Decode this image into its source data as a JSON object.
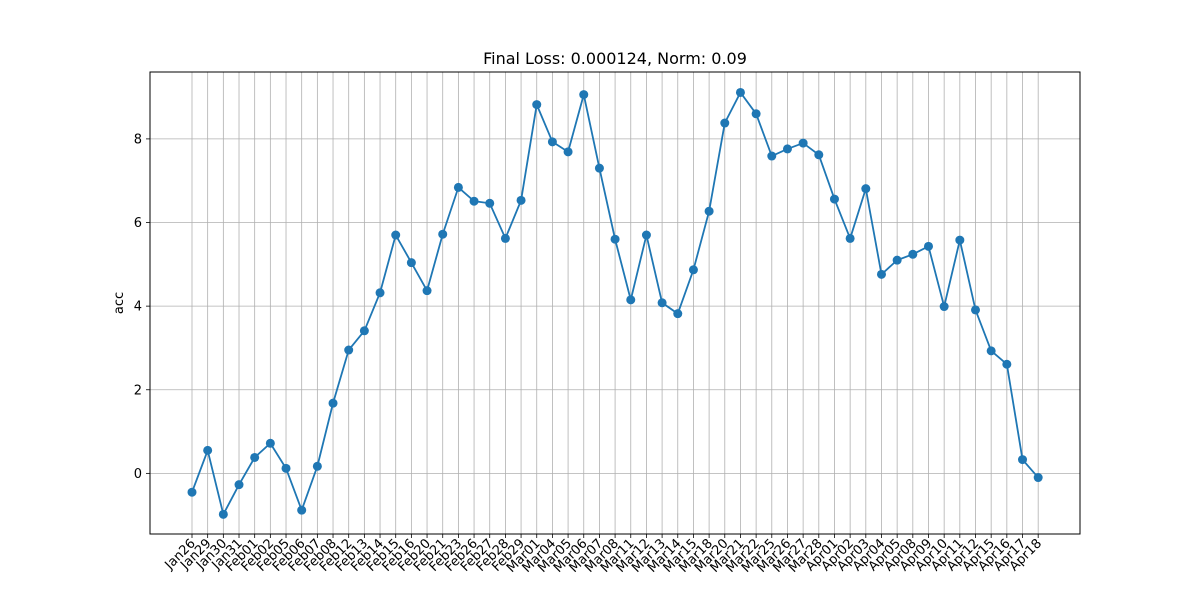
{
  "chart_data": {
    "type": "line",
    "title": "Final Loss: 0.000124, Norm: 0.09",
    "xlabel": "",
    "ylabel": "acc",
    "ylim": [
      -1.45,
      9.6
    ],
    "yticks": [
      0,
      2,
      4,
      6,
      8
    ],
    "grid": true,
    "colors": {
      "line": "#1f77b4",
      "grid": "#b0b0b0",
      "axis": "#000000"
    },
    "categories": [
      "Jan26",
      "Jan29",
      "Jan30",
      "Jan31",
      "Feb01",
      "Feb02",
      "Feb05",
      "Feb06",
      "Feb07",
      "Feb08",
      "Feb12",
      "Feb13",
      "Feb14",
      "Feb15",
      "Feb16",
      "Feb20",
      "Feb21",
      "Feb23",
      "Feb26",
      "Feb27",
      "Feb28",
      "Feb29",
      "Mar01",
      "Mar04",
      "Mar05",
      "Mar06",
      "Mar07",
      "Mar08",
      "Mar11",
      "Mar12",
      "Mar13",
      "Mar14",
      "Mar15",
      "Mar18",
      "Mar20",
      "Mar21",
      "Mar22",
      "Mar25",
      "Mar26",
      "Mar27",
      "Mar28",
      "Apr01",
      "Apr02",
      "Apr03",
      "Apr04",
      "Apr05",
      "Apr08",
      "Apr09",
      "Apr10",
      "Apr11",
      "Apr12",
      "Apr15",
      "Apr16",
      "Apr17",
      "Apr18"
    ],
    "values": [
      -0.45,
      0.55,
      -0.98,
      -0.27,
      0.38,
      0.72,
      0.12,
      -0.88,
      0.17,
      1.68,
      2.95,
      3.41,
      4.32,
      5.7,
      5.04,
      4.37,
      5.72,
      6.84,
      6.51,
      6.46,
      5.62,
      6.53,
      8.82,
      7.93,
      7.69,
      9.06,
      7.3,
      5.6,
      4.15,
      5.7,
      4.08,
      3.82,
      4.87,
      6.27,
      8.38,
      9.11,
      8.6,
      7.59,
      7.76,
      7.9,
      7.62,
      6.56,
      5.62,
      6.81,
      4.76,
      5.1,
      5.24,
      5.43,
      3.99,
      5.58,
      3.91,
      2.93,
      2.61,
      0.33,
      -0.1
    ]
  }
}
